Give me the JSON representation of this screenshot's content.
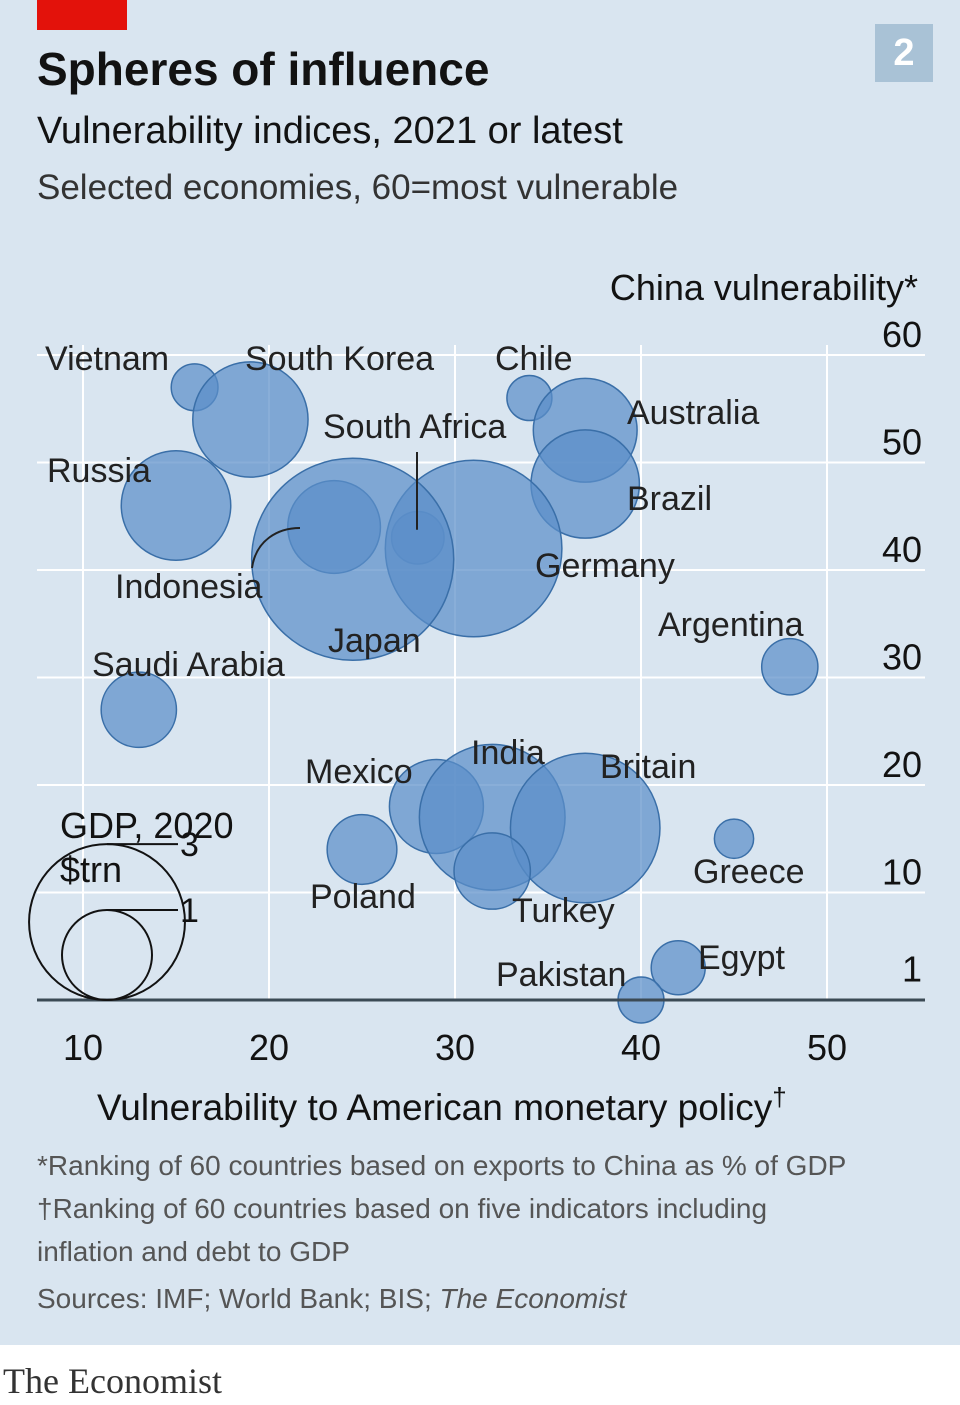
{
  "badge": "2",
  "title": "Spheres of influence",
  "subtitle": "Vulnerability indices, 2021 or latest",
  "subsubtitle": "Selected economies, 60=most vulnerable",
  "colors": {
    "bubble_fill": "#5b8fc9",
    "bubble_stroke": "#3a6fa8",
    "panel": "#d9e5f0",
    "red": "#e3120b"
  },
  "chart_data": {
    "type": "scatter",
    "xlabel": "Vulnerability to American monetary policy",
    "xlabel_mark": "†",
    "ylabel": "China vulnerability*",
    "xlim": [
      7,
      56
    ],
    "ylim": [
      0,
      60
    ],
    "x_ticks": [
      10,
      20,
      30,
      40,
      50
    ],
    "y_ticks": [
      1,
      10,
      20,
      30,
      40,
      50,
      60
    ],
    "size_legend": {
      "title": [
        "GDP, 2020",
        "$trn"
      ],
      "entries": [
        {
          "label": "3",
          "value": 3
        },
        {
          "label": "1",
          "value": 1
        }
      ]
    },
    "points": [
      {
        "label": "Vietnam",
        "x": 16,
        "y": 57,
        "gdp": 0.27
      },
      {
        "label": "South Korea",
        "x": 19,
        "y": 54,
        "gdp": 1.64
      },
      {
        "label": "Chile",
        "x": 34,
        "y": 56,
        "gdp": 0.25
      },
      {
        "label": "Australia",
        "x": 37,
        "y": 53,
        "gdp": 1.33
      },
      {
        "label": "South Africa",
        "x": 28,
        "y": 43,
        "gdp": 0.34
      },
      {
        "label": "Russia",
        "x": 15,
        "y": 46,
        "gdp": 1.48
      },
      {
        "label": "Brazil",
        "x": 37,
        "y": 48,
        "gdp": 1.45
      },
      {
        "label": "Indonesia",
        "x": 23.5,
        "y": 44,
        "gdp": 1.06
      },
      {
        "label": "Germany",
        "x": 31,
        "y": 42,
        "gdp": 3.85
      },
      {
        "label": "Japan",
        "x": 24.5,
        "y": 41,
        "gdp": 5.04
      },
      {
        "label": "Argentina",
        "x": 48,
        "y": 31,
        "gdp": 0.39
      },
      {
        "label": "Saudi Arabia",
        "x": 13,
        "y": 27,
        "gdp": 0.7
      },
      {
        "label": "Mexico",
        "x": 29,
        "y": 18,
        "gdp": 1.09
      },
      {
        "label": "India",
        "x": 32,
        "y": 17,
        "gdp": 2.62
      },
      {
        "label": "Britain",
        "x": 37,
        "y": 16,
        "gdp": 2.76
      },
      {
        "label": "Poland",
        "x": 25,
        "y": 14,
        "gdp": 0.6
      },
      {
        "label": "Greece",
        "x": 45,
        "y": 15,
        "gdp": 0.19
      },
      {
        "label": "Turkey",
        "x": 32,
        "y": 12,
        "gdp": 0.72
      },
      {
        "label": "Egypt",
        "x": 42,
        "y": 3,
        "gdp": 0.36
      },
      {
        "label": "Pakistan",
        "x": 40,
        "y": 0,
        "gdp": 0.26
      }
    ]
  },
  "notes": {
    "china": "*Ranking of 60 countries based on exports to China as % of GDP",
    "fed_mark": "†",
    "fed_line1": "Ranking of 60 countries based on five indicators including",
    "fed_line2": "inflation and debt to GDP",
    "sources_prefix": "Sources: IMF; World Bank; BIS; ",
    "sources_italic": "The Economist"
  },
  "footer_brand": "The Economist"
}
